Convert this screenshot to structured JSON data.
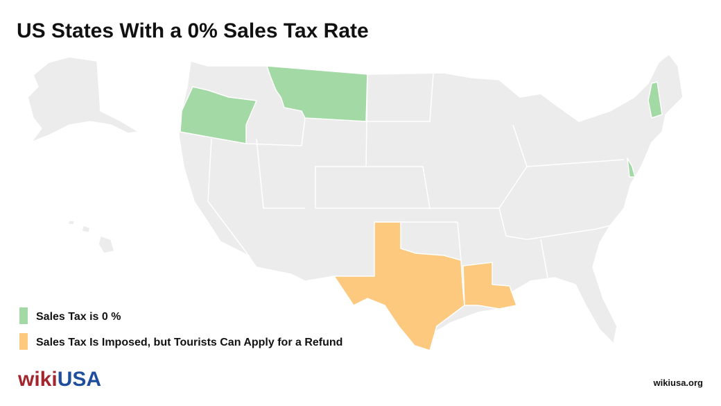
{
  "title": "US States With a 0% Sales Tax Rate",
  "legend": [
    {
      "label": "Sales Tax is 0 %",
      "color": "#a3d9a5"
    },
    {
      "label": "Sales Tax Is Imposed, but Tourists Can Apply for a Refund",
      "color": "#fdc97e"
    }
  ],
  "logo": {
    "part1": "wiki",
    "part2": "USA"
  },
  "site": "wikiusa.org"
}
